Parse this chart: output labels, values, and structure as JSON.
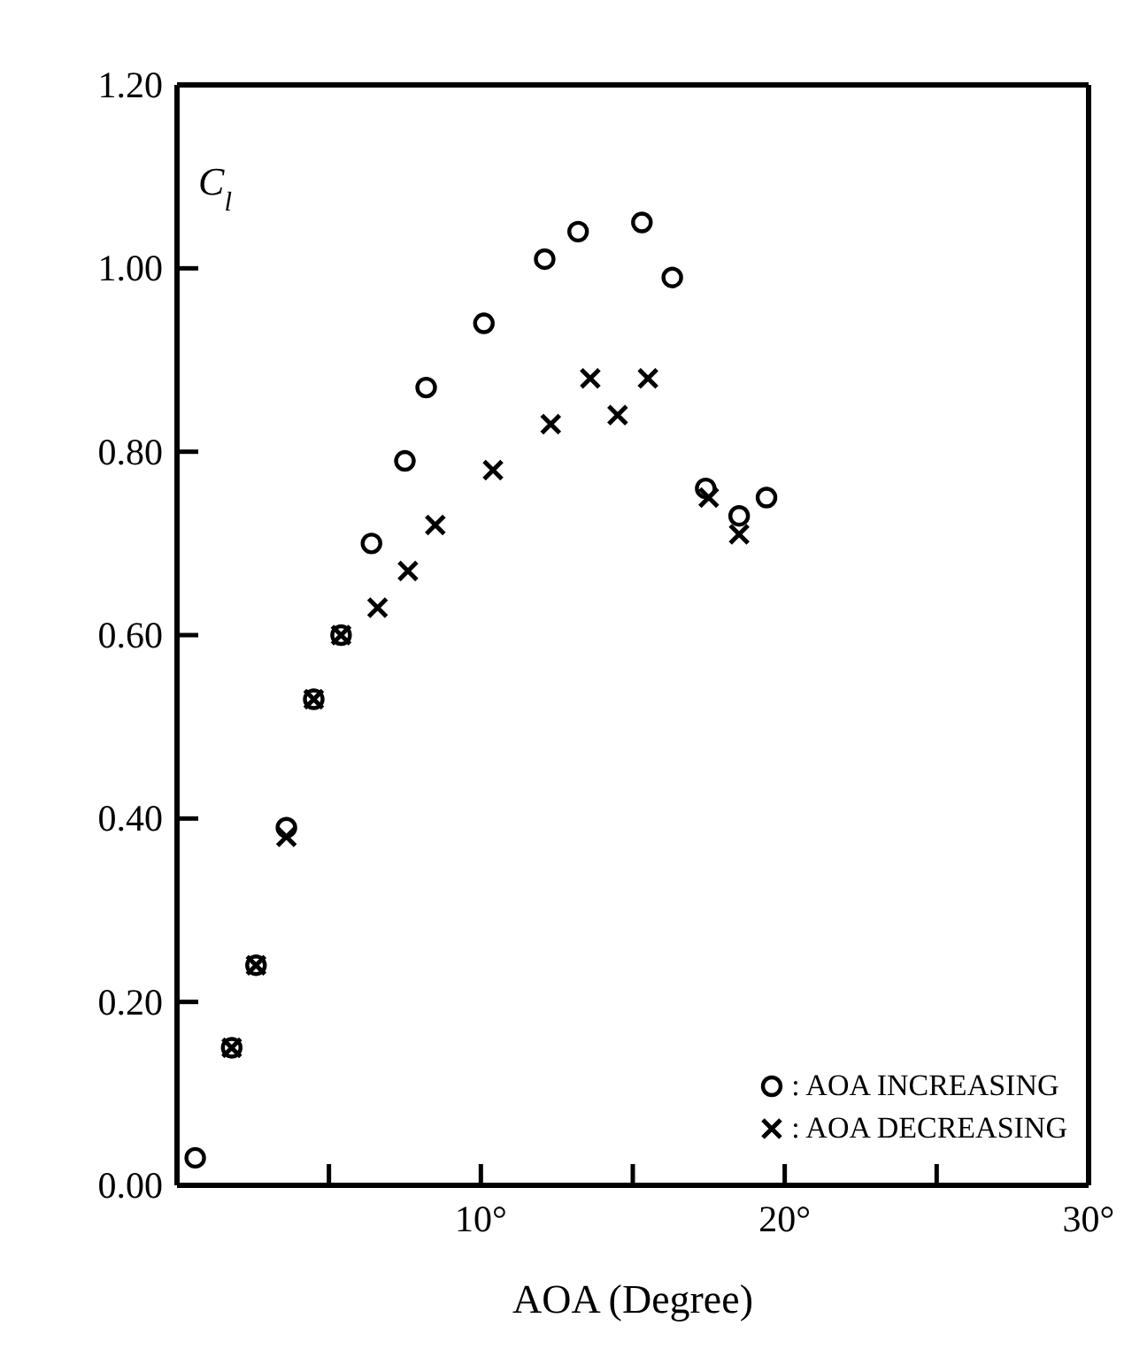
{
  "chart_data": {
    "type": "scatter",
    "xlabel": "AOA (Degree)",
    "ylabel": "C$_{l}$",
    "xlim": [
      0,
      30
    ],
    "xticks": [
      {
        "value": 0,
        "label": null
      },
      {
        "value": 5,
        "label": null
      },
      {
        "value": 10,
        "label": "10°"
      },
      {
        "value": 15,
        "label": null
      },
      {
        "value": 20,
        "label": "20°"
      },
      {
        "value": 25,
        "label": null
      },
      {
        "value": 30,
        "label": "30°"
      }
    ],
    "ylim": [
      0,
      1.2
    ],
    "yticks": [
      {
        "value": 0,
        "label": "0.00"
      },
      {
        "value": 0.2,
        "label": "0.20"
      },
      {
        "value": 0.4,
        "label": "0.40"
      },
      {
        "value": 0.6,
        "label": "0.60"
      },
      {
        "value": 0.8,
        "label": "0.80"
      },
      {
        "value": 1.0,
        "label": "1.00"
      },
      {
        "value": 1.2,
        "label": "1.20"
      }
    ],
    "legend": "bottom right",
    "series": [
      {
        "name": ": AOA INCREASING",
        "color": "#000000",
        "marker": "circle",
        "x": [
          0.6,
          1.8,
          2.6,
          3.6,
          4.5,
          5.4,
          6.4,
          7.5,
          8.2,
          10.1,
          12.1,
          13.2,
          15.3,
          16.3,
          17.4,
          18.5,
          19.4
        ],
        "values": [
          0.03,
          0.15,
          0.24,
          0.39,
          0.53,
          0.6,
          0.7,
          0.79,
          0.87,
          0.94,
          1.01,
          1.04,
          1.05,
          0.99,
          0.76,
          0.73,
          0.75
        ]
      },
      {
        "name": ": AOA DECREASING",
        "color": "#000000",
        "marker": "cross",
        "x": [
          1.8,
          2.6,
          3.6,
          4.5,
          5.4,
          6.6,
          7.6,
          8.5,
          10.4,
          12.3,
          13.6,
          14.5,
          15.5,
          17.5,
          18.5
        ],
        "values": [
          0.15,
          0.24,
          0.38,
          0.53,
          0.6,
          0.63,
          0.67,
          0.72,
          0.78,
          0.83,
          0.88,
          0.84,
          0.88,
          0.75,
          0.71
        ]
      }
    ]
  }
}
